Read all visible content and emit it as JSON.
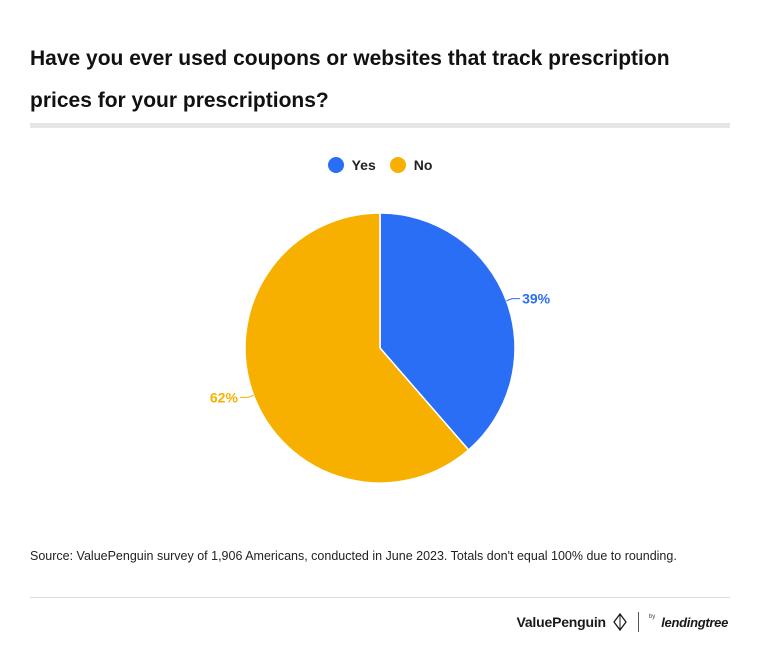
{
  "title": "Have you ever used coupons or websites that track prescription prices for your prescriptions?",
  "source": "Source: ValuePenguin survey of 1,906 Americans, conducted in June 2023. Totals don't equal 100% due to rounding.",
  "branding": {
    "primary": "ValuePenguin",
    "by": "by",
    "secondary": "lendingtree"
  },
  "colors": {
    "yes": "#2a6ef5",
    "no": "#f7b000"
  },
  "chart_data": {
    "type": "pie",
    "title": "Have you ever used coupons or websites that track prescription prices for your prescriptions?",
    "legend_position": "top-center",
    "series": [
      {
        "name": "Yes",
        "value": 39,
        "label": "39%",
        "color": "#2a6ef5"
      },
      {
        "name": "No",
        "value": 62,
        "label": "62%",
        "color": "#f7b000"
      }
    ]
  }
}
